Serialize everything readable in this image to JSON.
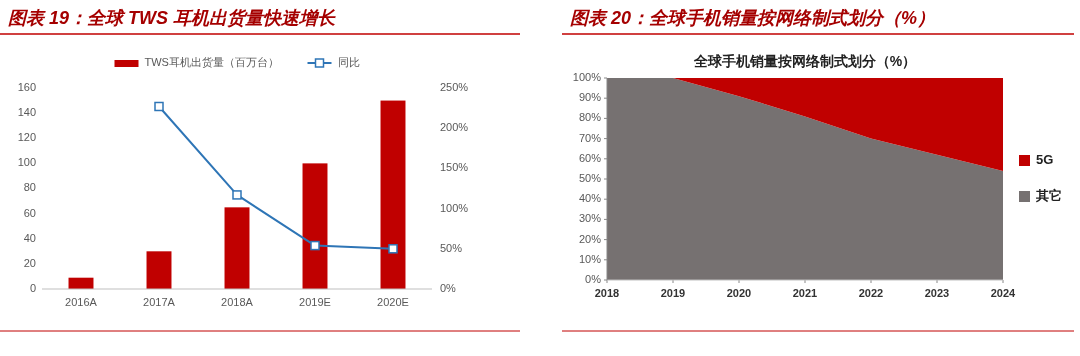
{
  "chart_data": [
    {
      "type": "bar",
      "title": "图表 19：全球 TWS 耳机出货量快速增长",
      "categories": [
        "2016A",
        "2017A",
        "2018A",
        "2019E",
        "2020E"
      ],
      "series": [
        {
          "name": "TWS耳机出货量（百万台）",
          "color": "#c00000",
          "values": [
            9,
            30,
            65,
            100,
            150
          ]
        },
        {
          "name": "同比",
          "type": "line",
          "axis": "y2",
          "color": "#2e75b6",
          "marker": "square",
          "values": [
            null,
            227,
            117,
            54,
            50
          ]
        }
      ],
      "ylim": [
        0,
        160
      ],
      "yticks": [
        0,
        20,
        40,
        60,
        80,
        100,
        120,
        140,
        160
      ],
      "y2lim": [
        0,
        250
      ],
      "y2ticks": [
        {
          "value": 0,
          "label": "0%"
        },
        {
          "value": 50,
          "label": "50%"
        },
        {
          "value": 100,
          "label": "100%"
        },
        {
          "value": 150,
          "label": "150%"
        },
        {
          "value": 200,
          "label": "200%"
        },
        {
          "value": 250,
          "label": "250%"
        }
      ],
      "legend": "top"
    },
    {
      "type": "area",
      "title": "图表 20：全球手机销量按网络制式划分（%）",
      "subtitle": "全球手机销量按网络制式划分（%）",
      "stacked": true,
      "x": [
        2018,
        2019,
        2020,
        2021,
        2022,
        2023,
        2024
      ],
      "series": [
        {
          "name": "其它",
          "color": "#767171",
          "values": [
            100,
            100,
            91,
            81,
            70,
            62,
            54
          ]
        },
        {
          "name": "5G",
          "color": "#c00000",
          "values": [
            0,
            0,
            9,
            19,
            30,
            38,
            46
          ]
        }
      ],
      "xlim": [
        2018,
        2024
      ],
      "xticks": [
        2018,
        2019,
        2020,
        2021,
        2022,
        2023,
        2024
      ],
      "ylim": [
        0,
        100
      ],
      "yticks": [
        {
          "value": 0,
          "label": "0%"
        },
        {
          "value": 10,
          "label": "10%"
        },
        {
          "value": 20,
          "label": "20%"
        },
        {
          "value": 30,
          "label": "30%"
        },
        {
          "value": 40,
          "label": "40%"
        },
        {
          "value": 50,
          "label": "50%"
        },
        {
          "value": 60,
          "label": "60%"
        },
        {
          "value": 70,
          "label": "70%"
        },
        {
          "value": 80,
          "label": "80%"
        },
        {
          "value": 90,
          "label": "90%"
        },
        {
          "value": 100,
          "label": "100%"
        }
      ],
      "legend": "right"
    }
  ]
}
